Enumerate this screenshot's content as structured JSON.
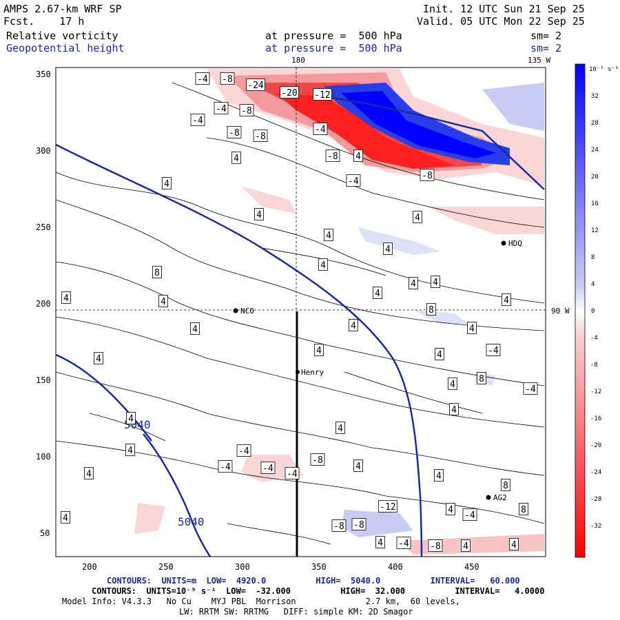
{
  "header": {
    "model": "AMPS 2.67-km WRF SP",
    "fcst_label": "Fcst.",
    "fcst_value": "17 h",
    "init": "Init. 12 UTC Sun 21 Sep 25",
    "valid": "Valid. 05 UTC Mon 22 Sep 25",
    "field1": "Relative vorticity",
    "field2": "Geopotential height",
    "pressure1": "at pressure =  500 hPa",
    "pressure2": "at pressure =  500 hPa",
    "sm1": "sm= 2",
    "sm2": "sm= 2"
  },
  "map_labels": {
    "top_180": "180",
    "top_135": "135 W",
    "right_90": "90 W",
    "stations": [
      "NCO",
      "Henry",
      "AG2",
      "HDQ"
    ]
  },
  "contour_labels": {
    "height": [
      "5040",
      "5040"
    ],
    "vorticity": [
      "-4",
      "-8",
      "-24",
      "-20",
      "-12",
      "-4",
      "-8",
      "-4",
      "-8",
      "-8",
      "-4",
      "-8",
      "4",
      "4",
      "-4",
      "-8",
      "4",
      "4",
      "4",
      "4",
      "4",
      "4",
      "8",
      "4",
      "4",
      "4",
      "4",
      "8",
      "4",
      "4",
      "4",
      "4",
      "4",
      "4",
      "-4",
      "4",
      "4",
      "8",
      "4",
      "-4",
      "4",
      "4",
      "4",
      "-4",
      "-8",
      "-4",
      "-4",
      "4",
      "-4",
      "4",
      "4",
      "4",
      "8",
      "4",
      "8",
      "4",
      "-4",
      "-8",
      "-8",
      "-12",
      "4",
      "-4",
      "-8",
      "4",
      "4"
    ]
  },
  "chart_data": {
    "type": "map",
    "x_ticks": [
      200,
      250,
      300,
      350,
      400,
      450
    ],
    "y_ticks": [
      50,
      100,
      150,
      200,
      250,
      300,
      350
    ],
    "xlim": [
      175,
      492
    ],
    "ylim": [
      33,
      357
    ],
    "colorbar": {
      "unit": "10⁻⁵ s⁻¹",
      "ticks": [
        32,
        28,
        24,
        20,
        16,
        12,
        8,
        4,
        0,
        -4,
        -8,
        -12,
        -16,
        -20,
        -24,
        -28,
        -32
      ]
    },
    "cross_section_x": 333,
    "cross_section_y": [
      33,
      196
    ],
    "dashed_guides": {
      "x": 333,
      "y": 196
    }
  },
  "footer": {
    "line1": "CONTOURS:  UNITS=m  LOW=  4920.0          HIGH=  5040.0          INTERVAL=   60.000",
    "line2": "CONTOURS:  UNITS=10⁻⁵ s⁻¹  LOW=  -32.000          HIGH=  32.000          INTERVAL=   4.0000",
    "line3": "Model Info: V4.3.3   No Cu    MYJ PBL  Morrison              2.7 km,  60 levels,",
    "line4": "LW: RRTM SW: RRTMG   DIFF: simple KM: 2D Smagor"
  },
  "colors": {
    "height_contour": "#1a2a9a",
    "pos_max": "#0000ff",
    "neg_max": "#ff0000"
  }
}
